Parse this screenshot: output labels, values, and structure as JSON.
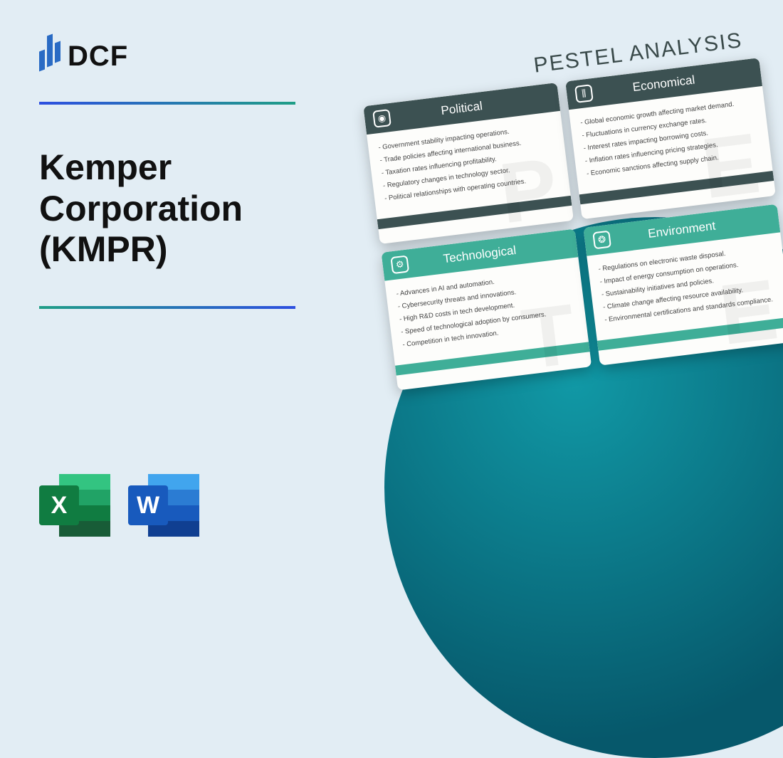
{
  "logo_text": "DCF",
  "title": "Kemper Corporation (KMPR)",
  "pestel_heading": "PESTEL ANALYSIS",
  "icons": {
    "excel_letter": "X",
    "word_letter": "W"
  },
  "cards": [
    {
      "title": "Political",
      "style": "dark",
      "letter": "P",
      "items": [
        "Government stability impacting operations.",
        "Trade policies affecting international business.",
        "Taxation rates influencing profitability.",
        "Regulatory changes in technology sector.",
        "Political relationships with operating countries."
      ]
    },
    {
      "title": "Economical",
      "style": "dark",
      "letter": "E",
      "items": [
        "Global economic growth affecting market demand.",
        "Fluctuations in currency exchange rates.",
        "Interest rates impacting borrowing costs.",
        "Inflation rates influencing pricing strategies.",
        "Economic sanctions affecting supply chain."
      ]
    },
    {
      "title": "Technological",
      "style": "teal",
      "letter": "T",
      "items": [
        "Advances in AI and automation.",
        "Cybersecurity threats and innovations.",
        "High R&D costs in tech development.",
        "Speed of technological adoption by consumers.",
        "Competition in tech innovation."
      ]
    },
    {
      "title": "Environment",
      "style": "teal",
      "letter": "E",
      "items": [
        "Regulations on electronic waste disposal.",
        "Impact of energy consumption on operations.",
        "Sustainability initiatives and policies.",
        "Climate change affecting resource availability.",
        "Environmental certifications and standards compliance."
      ]
    }
  ],
  "card_icons": [
    "◉",
    "⫼",
    "⚙",
    "❂"
  ],
  "colors": {
    "bg": "#e2edf4",
    "dark_header": "#3c5152",
    "teal_header": "#3fae98",
    "circle_inner": "#1199a6",
    "circle_outer": "#06586b"
  }
}
